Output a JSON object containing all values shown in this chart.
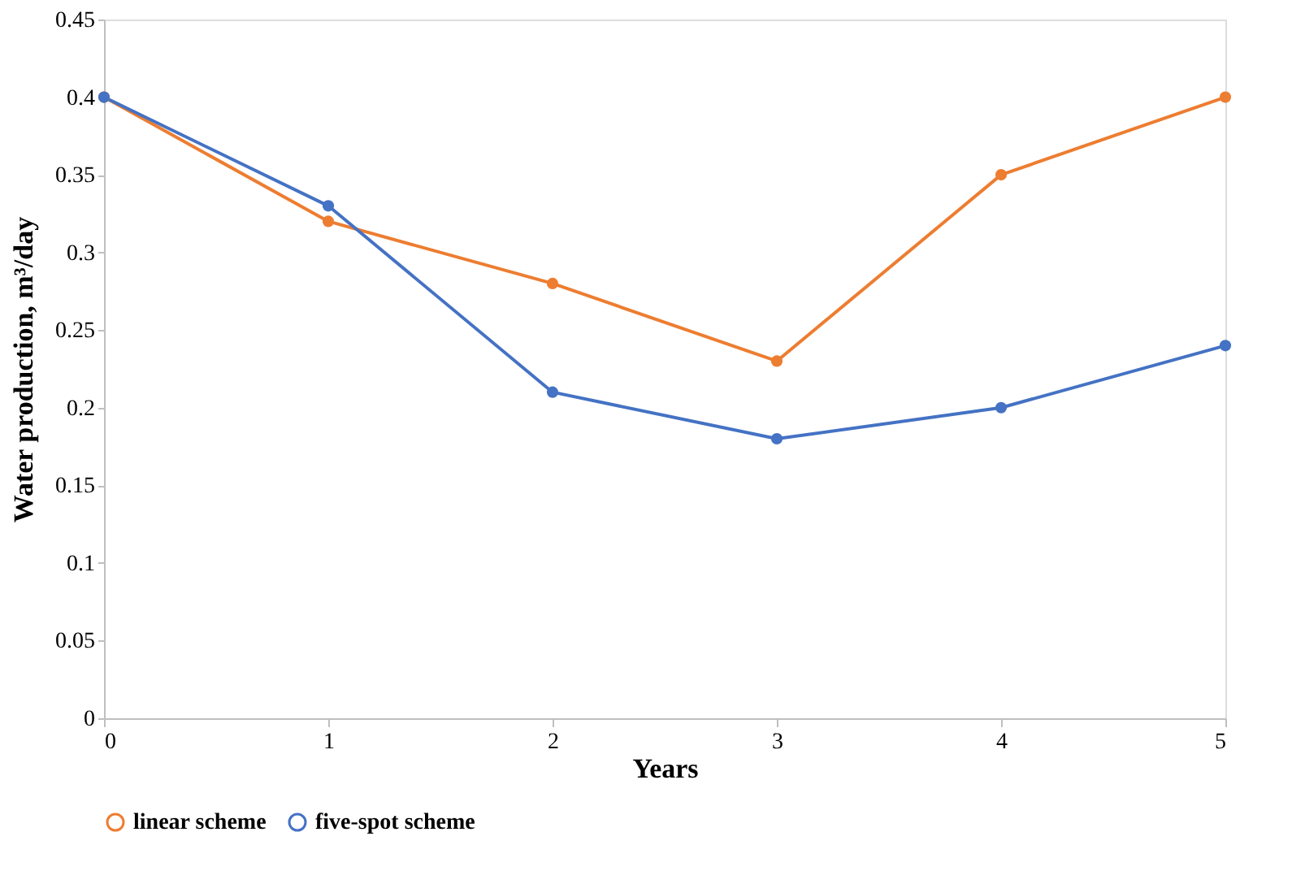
{
  "chart_data": {
    "type": "line",
    "xlabel": "Years",
    "ylabel": "Water production, m³/day",
    "x": [
      0,
      1,
      2,
      3,
      4,
      5
    ],
    "series": [
      {
        "name": "linear scheme",
        "color": "#ed7d31",
        "values": [
          0.4,
          0.32,
          0.28,
          0.23,
          0.35,
          0.4
        ]
      },
      {
        "name": "five-spot scheme",
        "color": "#4472c4",
        "values": [
          0.4,
          0.33,
          0.21,
          0.18,
          0.2,
          0.24
        ]
      }
    ],
    "xlim": [
      0,
      5
    ],
    "xticks": [
      0,
      1,
      2,
      3,
      4,
      5
    ],
    "ylim": [
      0,
      0.45
    ],
    "yticks": [
      0,
      0.05,
      0.1,
      0.15,
      0.2,
      0.25,
      0.3,
      0.35,
      0.4,
      0.45
    ],
    "grid": false,
    "legend": "bottom",
    "marker": "circle",
    "line_style": "solid"
  }
}
